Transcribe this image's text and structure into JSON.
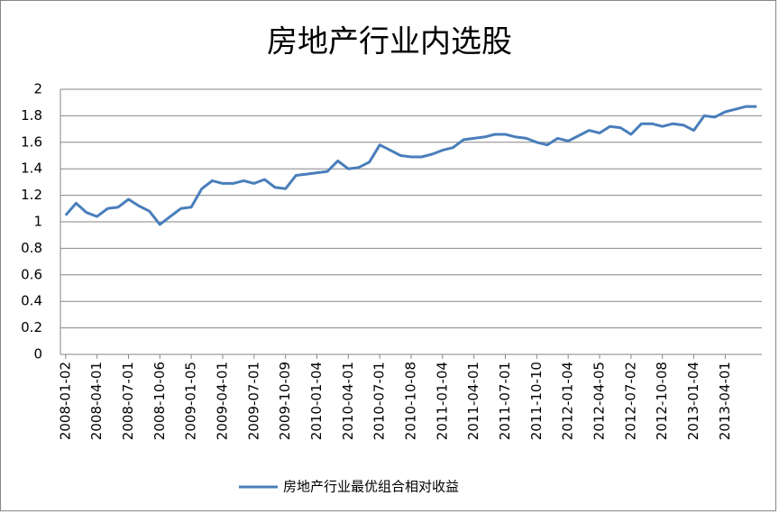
{
  "chart_data": {
    "type": "line",
    "title": "房地产行业内选股",
    "categories": [
      "2008-01-02",
      null,
      null,
      "2008-04-01",
      null,
      null,
      "2008-07-01",
      null,
      null,
      "2008-10-06",
      null,
      null,
      "2009-01-05",
      null,
      null,
      "2009-04-01",
      null,
      null,
      "2009-07-01",
      null,
      null,
      "2009-10-09",
      null,
      null,
      "2010-01-04",
      null,
      null,
      "2010-04-01",
      null,
      null,
      "2010-07-01",
      null,
      null,
      "2010-10-08",
      null,
      null,
      "2011-01-04",
      null,
      null,
      "2011-04-01",
      null,
      null,
      "2011-07-01",
      null,
      null,
      "2011-10-10",
      null,
      null,
      "2012-01-04",
      null,
      null,
      "2012-04-05",
      null,
      null,
      "2012-07-02",
      null,
      null,
      "2012-10-08",
      null,
      null,
      "2013-01-04",
      null,
      null,
      "2013-04-01",
      null,
      null,
      null
    ],
    "series": [
      {
        "name": "房地产行业最优组合相对收益",
        "color": "#4a7ebb",
        "values": [
          1.05,
          1.14,
          1.07,
          1.04,
          1.1,
          1.11,
          1.17,
          1.12,
          1.08,
          0.98,
          1.04,
          1.1,
          1.11,
          1.25,
          1.31,
          1.29,
          1.29,
          1.31,
          1.29,
          1.32,
          1.26,
          1.25,
          1.35,
          1.36,
          1.37,
          1.38,
          1.46,
          1.4,
          1.41,
          1.45,
          1.58,
          1.54,
          1.5,
          1.49,
          1.49,
          1.51,
          1.54,
          1.56,
          1.62,
          1.63,
          1.64,
          1.66,
          1.66,
          1.64,
          1.63,
          1.6,
          1.58,
          1.63,
          1.61,
          1.65,
          1.69,
          1.67,
          1.72,
          1.71,
          1.66,
          1.74,
          1.74,
          1.72,
          1.74,
          1.73,
          1.69,
          1.8,
          1.79,
          1.83,
          1.85,
          1.87,
          1.87
        ]
      }
    ],
    "ylim": [
      0,
      2
    ],
    "yticks": [
      0,
      0.2,
      0.4,
      0.6,
      0.8,
      1,
      1.2,
      1.4,
      1.6,
      1.8,
      2
    ],
    "grid": true,
    "legend": "bottom"
  }
}
